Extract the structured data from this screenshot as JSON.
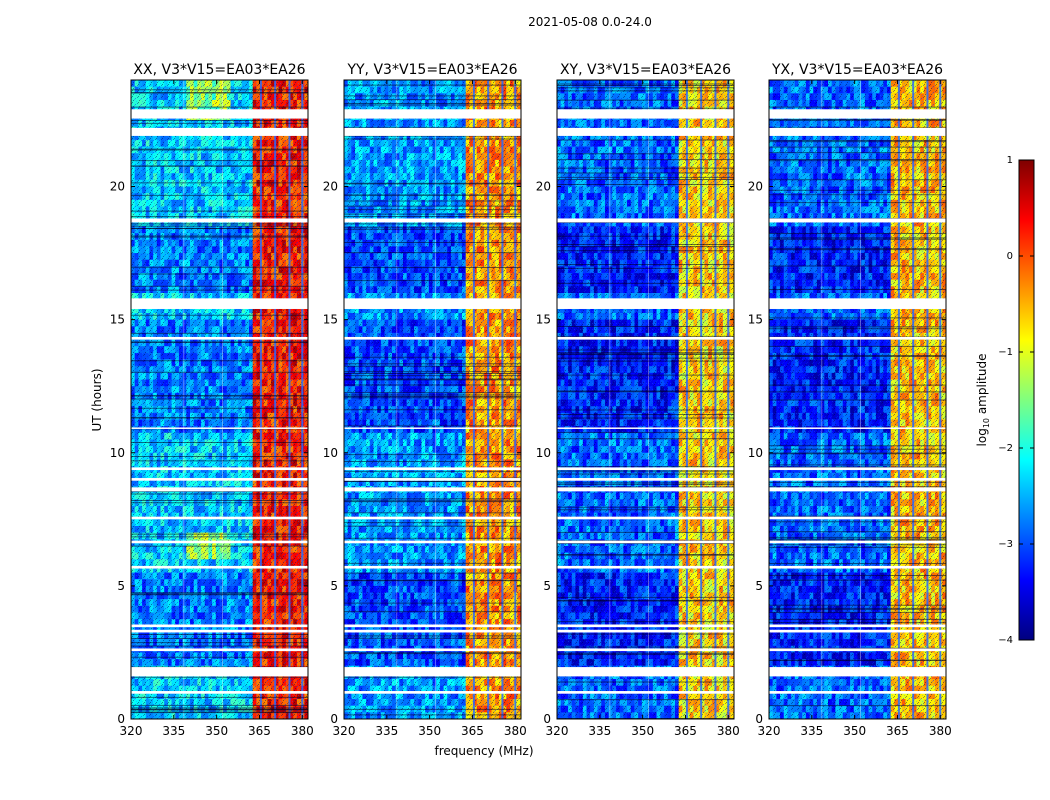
{
  "suptitle": "2021-05-08 0.0-24.0",
  "chart_data": {
    "type": "heatmap",
    "xlabel": "frequency (MHz)",
    "ylabel": "UT (hours)",
    "xlim": [
      320,
      382
    ],
    "ylim": [
      0,
      24
    ],
    "x_ticks": [
      320,
      335,
      350,
      365,
      380
    ],
    "y_ticks": [
      0,
      5,
      10,
      15,
      20
    ],
    "rfi_band_mhz": [
      [
        363,
        382
      ]
    ],
    "rfi_channel_lines_mhz": [
      365.5,
      370.5,
      375.5,
      380
    ],
    "flagged_hours": [
      [
        0.95,
        1.05
      ],
      [
        1.6,
        1.95
      ],
      [
        2.55,
        2.65
      ],
      [
        3.25,
        3.35
      ],
      [
        3.45,
        3.55
      ],
      [
        5.65,
        5.75
      ],
      [
        6.6,
        6.7
      ],
      [
        7.5,
        7.6
      ],
      [
        8.55,
        8.7
      ],
      [
        8.95,
        9.05
      ],
      [
        9.35,
        9.45
      ],
      [
        10.9,
        10.95
      ],
      [
        14.25,
        14.35
      ],
      [
        15.4,
        15.8
      ],
      [
        18.65,
        18.8
      ],
      [
        21.9,
        22.2
      ],
      [
        22.55,
        22.9
      ]
    ],
    "colorbar": {
      "label": "log",
      "label_sub": "10",
      "label_rest": " amplitude",
      "range": [
        -4,
        1
      ],
      "ticks": [
        "1",
        "0",
        "−1",
        "−2",
        "−3",
        "−4"
      ],
      "tick_values": [
        1,
        0,
        -1,
        -2,
        -3,
        -4
      ]
    },
    "panels": [
      {
        "title": "XX, V3*V15=EA03*EA26",
        "pol": "XX",
        "baseline": "V3*V15=EA03*EA26",
        "band_level": 0.85,
        "background_level": 0.3
      },
      {
        "title": "YY, V3*V15=EA03*EA26",
        "pol": "YY",
        "baseline": "V3*V15=EA03*EA26",
        "band_level": 0.72,
        "background_level": 0.25
      },
      {
        "title": "XY, V3*V15=EA03*EA26",
        "pol": "XY",
        "baseline": "V3*V15=EA03*EA26",
        "band_level": 0.66,
        "background_level": 0.2
      },
      {
        "title": "YX, V3*V15=EA03*EA26",
        "pol": "YX",
        "baseline": "V3*V15=EA03*EA26",
        "band_level": 0.68,
        "background_level": 0.2
      }
    ]
  }
}
